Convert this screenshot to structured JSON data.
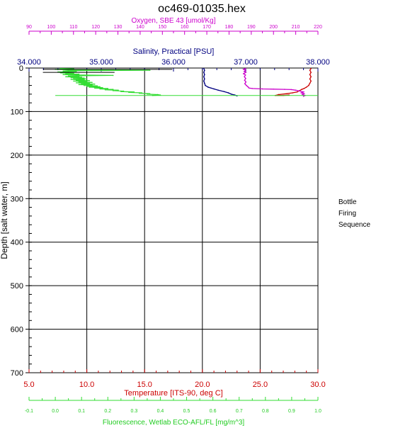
{
  "chart_data": {
    "type": "line",
    "title": "oc469-01035.hex",
    "side_label": [
      "Bottle",
      "Firing",
      "Sequence"
    ],
    "y_axis": {
      "label": "Depth [salt water, m]",
      "range": [
        0,
        700
      ],
      "ticks": [
        0,
        100,
        200,
        300,
        400,
        500,
        600,
        700
      ],
      "inverted": true,
      "color": "#000000"
    },
    "x_axes": [
      {
        "key": "oxygen",
        "label": "Oxygen, SBE 43 [umol/Kg]",
        "position": "top-outer",
        "color": "#cc00cc",
        "range": [
          90,
          220
        ],
        "ticks": [
          90,
          100,
          110,
          120,
          130,
          140,
          150,
          160,
          170,
          180,
          190,
          200,
          210,
          220
        ],
        "tick_labels": [
          "90",
          "100",
          "110",
          "120",
          "130",
          "140",
          "150",
          "160",
          "170",
          "180",
          "190",
          "200",
          "210",
          "220"
        ]
      },
      {
        "key": "salinity",
        "label": "Salinity, Practical [PSU]",
        "position": "top-inner",
        "color": "#000080",
        "range": [
          34.0,
          38.0
        ],
        "ticks": [
          34.0,
          35.0,
          36.0,
          37.0,
          38.0
        ],
        "tick_labels": [
          "34.000",
          "35.000",
          "36.000",
          "37.000",
          "38.000"
        ]
      },
      {
        "key": "temperature",
        "label": "Temperature [ITS-90, deg C]",
        "position": "bottom-inner",
        "color": "#cc0000",
        "range": [
          5.0,
          30.0
        ],
        "ticks": [
          5.0,
          10.0,
          15.0,
          20.0,
          25.0,
          30.0
        ],
        "tick_labels": [
          "5.0",
          "10.0",
          "15.0",
          "20.0",
          "25.0",
          "30.0"
        ]
      },
      {
        "key": "fluorescence",
        "label": "Fluorescence, Wetlab ECO-AFL/FL [mg/m^3]",
        "position": "bottom-outer",
        "color": "#33dd33",
        "range": [
          -0.1,
          1.0
        ],
        "ticks": [
          -0.1,
          0.0,
          0.1,
          0.2,
          0.3,
          0.4,
          0.5,
          0.6,
          0.7,
          0.8,
          0.9,
          1.0
        ],
        "tick_labels": [
          "-0.1",
          "0.0",
          "0.1",
          "0.2",
          "0.3",
          "0.4",
          "0.5",
          "0.6",
          "0.7",
          "0.8",
          "0.9",
          "1.0"
        ]
      }
    ],
    "series": [
      {
        "axis": "temperature",
        "color": "#cc0000",
        "points": [
          [
            29.4,
            1
          ],
          [
            29.3,
            5
          ],
          [
            29.4,
            10
          ],
          [
            29.3,
            15
          ],
          [
            29.4,
            20
          ],
          [
            29.3,
            25
          ],
          [
            29.4,
            30
          ],
          [
            29.3,
            35
          ],
          [
            29.2,
            40
          ],
          [
            29.0,
            44
          ],
          [
            28.8,
            47
          ],
          [
            28.6,
            49
          ],
          [
            28.4,
            52
          ],
          [
            28.2,
            55
          ],
          [
            27.8,
            57
          ],
          [
            27.3,
            59
          ],
          [
            26.6,
            61
          ],
          [
            26.3,
            63
          ],
          [
            27.0,
            63
          ],
          [
            27.5,
            62
          ]
        ]
      },
      {
        "axis": "salinity",
        "color": "#000080",
        "points": [
          [
            36.42,
            1
          ],
          [
            36.43,
            5
          ],
          [
            36.42,
            10
          ],
          [
            36.43,
            15
          ],
          [
            36.42,
            20
          ],
          [
            36.43,
            25
          ],
          [
            36.42,
            30
          ],
          [
            36.43,
            35
          ],
          [
            36.44,
            40
          ],
          [
            36.48,
            44
          ],
          [
            36.52,
            46
          ],
          [
            36.56,
            48
          ],
          [
            36.62,
            51
          ],
          [
            36.7,
            54
          ],
          [
            36.76,
            57
          ],
          [
            36.8,
            60
          ],
          [
            36.85,
            62
          ],
          [
            36.88,
            64
          ]
        ]
      },
      {
        "axis": "oxygen",
        "color": "#cc00cc",
        "points": [
          [
            187.5,
            1
          ],
          [
            186.5,
            3
          ],
          [
            187.5,
            5
          ],
          [
            186.8,
            8
          ],
          [
            187.6,
            10
          ],
          [
            186.5,
            13
          ],
          [
            187.4,
            16
          ],
          [
            186.9,
            20
          ],
          [
            187.5,
            24
          ],
          [
            187.0,
            28
          ],
          [
            187.6,
            32
          ],
          [
            187.1,
            36
          ],
          [
            187.8,
            40
          ],
          [
            188.5,
            43
          ],
          [
            189.0,
            46
          ],
          [
            190.5,
            47
          ],
          [
            195.0,
            48
          ],
          [
            200.0,
            48.5
          ],
          [
            205.0,
            49
          ],
          [
            208.0,
            49.5
          ],
          [
            210.0,
            51
          ],
          [
            212.0,
            53
          ],
          [
            213.5,
            55
          ],
          [
            212.5,
            57
          ],
          [
            213.8,
            59
          ],
          [
            213.0,
            61
          ],
          [
            214.2,
            63
          ],
          [
            213.5,
            65
          ]
        ]
      },
      {
        "axis": "fluorescence",
        "color": "#33dd33",
        "points": [
          [
            0.02,
            1
          ],
          [
            0.07,
            2
          ],
          [
            0.0,
            3
          ],
          [
            0.06,
            4
          ],
          [
            0.36,
            5
          ],
          [
            0.05,
            6
          ],
          [
            0.03,
            7
          ],
          [
            0.08,
            8
          ],
          [
            0.01,
            9
          ],
          [
            0.05,
            10
          ],
          [
            0.02,
            11
          ],
          [
            0.07,
            12
          ],
          [
            0.04,
            13
          ],
          [
            0.09,
            14
          ],
          [
            0.03,
            15
          ],
          [
            0.08,
            16
          ],
          [
            0.22,
            17
          ],
          [
            0.05,
            18
          ],
          [
            0.09,
            19
          ],
          [
            0.04,
            20
          ],
          [
            0.1,
            21
          ],
          [
            0.06,
            22
          ],
          [
            0.11,
            23
          ],
          [
            0.07,
            24
          ],
          [
            0.12,
            25
          ],
          [
            0.06,
            26
          ],
          [
            0.11,
            27
          ],
          [
            0.08,
            28
          ],
          [
            0.13,
            29
          ],
          [
            0.07,
            30
          ],
          [
            0.12,
            31
          ],
          [
            0.09,
            32
          ],
          [
            0.14,
            33
          ],
          [
            0.08,
            34
          ],
          [
            0.13,
            35
          ],
          [
            0.1,
            36
          ],
          [
            0.15,
            37
          ],
          [
            0.09,
            38
          ],
          [
            0.14,
            39
          ],
          [
            0.11,
            40
          ],
          [
            0.16,
            41
          ],
          [
            0.12,
            42
          ],
          [
            0.17,
            43
          ],
          [
            0.13,
            44
          ],
          [
            0.18,
            45
          ],
          [
            0.15,
            46
          ],
          [
            0.2,
            47
          ],
          [
            0.17,
            48
          ],
          [
            0.22,
            49
          ],
          [
            0.19,
            50
          ],
          [
            0.24,
            51
          ],
          [
            0.22,
            52
          ],
          [
            0.26,
            53
          ],
          [
            0.25,
            54
          ],
          [
            0.3,
            55
          ],
          [
            0.28,
            56
          ],
          [
            0.33,
            57
          ],
          [
            0.32,
            58
          ],
          [
            0.36,
            59
          ],
          [
            0.35,
            60
          ],
          [
            0.39,
            61
          ],
          [
            0.4,
            62
          ],
          [
            0.37,
            63
          ]
        ]
      }
    ],
    "markers": [
      {
        "axis": "fluorescence",
        "color": "#33dd33",
        "x1": 0.0,
        "x2": 1.0,
        "y": 63
      },
      {
        "axis": "temperature",
        "color": "#000000",
        "x1": 6.2,
        "x2": 12.4,
        "y": 3
      },
      {
        "axis": "temperature",
        "color": "#000000",
        "x1": 6.2,
        "x2": 12.4,
        "y": 10
      },
      {
        "axis": "temperature",
        "color": "#000000",
        "x1": 12.4,
        "x2": 17.4,
        "y": 3
      }
    ],
    "grid": true
  }
}
